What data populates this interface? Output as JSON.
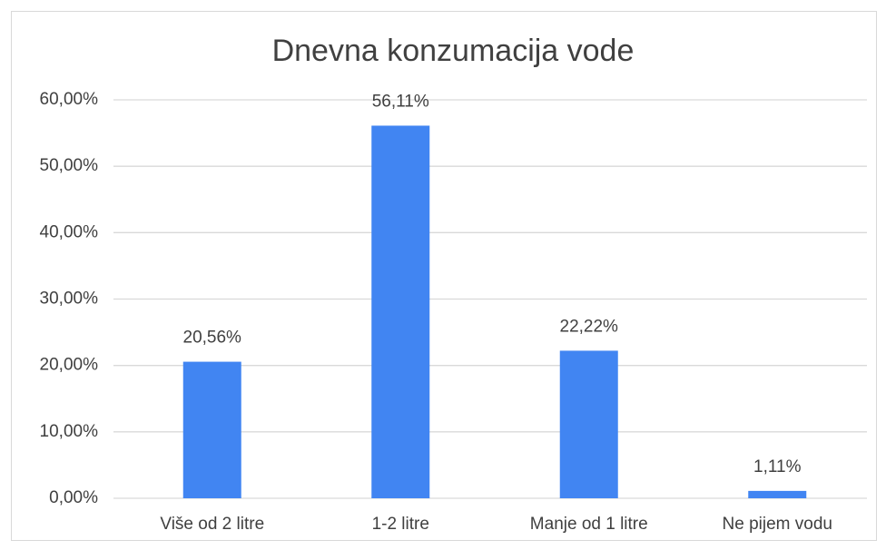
{
  "chart_data": {
    "type": "bar",
    "title": "Dnevna konzumacija vode",
    "categories": [
      "Više od 2 litre",
      "1-2 litre",
      "Manje od 1 litre",
      "Ne pijem vodu"
    ],
    "values": [
      20.56,
      56.11,
      22.22,
      1.11
    ],
    "value_labels": [
      "20,56%",
      "56,11%",
      "22,22%",
      "1,11%"
    ],
    "color": "#4185f2",
    "ylim": [
      0,
      60
    ],
    "yticks": [
      {
        "value": 0,
        "label": "0,00%"
      },
      {
        "value": 10,
        "label": "10,00%"
      },
      {
        "value": 20,
        "label": "20,00%"
      },
      {
        "value": 30,
        "label": "30,00%"
      },
      {
        "value": 40,
        "label": "40,00%"
      },
      {
        "value": 50,
        "label": "50,00%"
      },
      {
        "value": 60,
        "label": "60,00%"
      }
    ],
    "grid": true
  }
}
